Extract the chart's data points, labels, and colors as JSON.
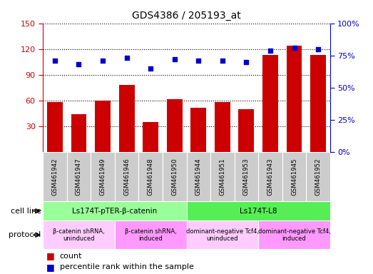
{
  "title": "GDS4386 / 205193_at",
  "samples": [
    "GSM461942",
    "GSM461947",
    "GSM461949",
    "GSM461946",
    "GSM461948",
    "GSM461950",
    "GSM461944",
    "GSM461951",
    "GSM461953",
    "GSM461943",
    "GSM461945",
    "GSM461952"
  ],
  "counts": [
    58,
    44,
    60,
    78,
    35,
    62,
    52,
    58,
    50,
    113,
    124,
    113
  ],
  "percentiles": [
    71,
    68,
    71,
    73,
    65,
    72,
    71,
    71,
    70,
    79,
    81,
    80
  ],
  "ylim_left": [
    0,
    150
  ],
  "ylim_right": [
    0,
    100
  ],
  "yticks_left": [
    30,
    60,
    90,
    120,
    150
  ],
  "yticks_right": [
    0,
    25,
    50,
    75,
    100
  ],
  "bar_color": "#cc0000",
  "dot_color": "#0000cc",
  "cell_line_groups": [
    {
      "label": "Ls174T-pTER-β-catenin",
      "start": 0,
      "end": 6,
      "color": "#99ff99"
    },
    {
      "label": "Ls174T-L8",
      "start": 6,
      "end": 12,
      "color": "#55ee55"
    }
  ],
  "protocol_groups": [
    {
      "label": "β-catenin shRNA,\nuninduced",
      "start": 0,
      "end": 3,
      "color": "#ffccff"
    },
    {
      "label": "β-catenin shRNA,\ninduced",
      "start": 3,
      "end": 6,
      "color": "#ff99ff"
    },
    {
      "label": "dominant-negative Tcf4,\nuninduced",
      "start": 6,
      "end": 9,
      "color": "#ffccff"
    },
    {
      "label": "dominant-negative Tcf4,\ninduced",
      "start": 9,
      "end": 12,
      "color": "#ff99ff"
    }
  ],
  "legend_count_color": "#cc0000",
  "legend_pct_color": "#0000cc",
  "cell_line_label": "cell line",
  "protocol_label": "protocol",
  "right_axis_label_color": "#0000cc",
  "left_axis_label_color": "#cc0000",
  "sample_bg_color": "#cccccc",
  "grid_color": "#000000"
}
